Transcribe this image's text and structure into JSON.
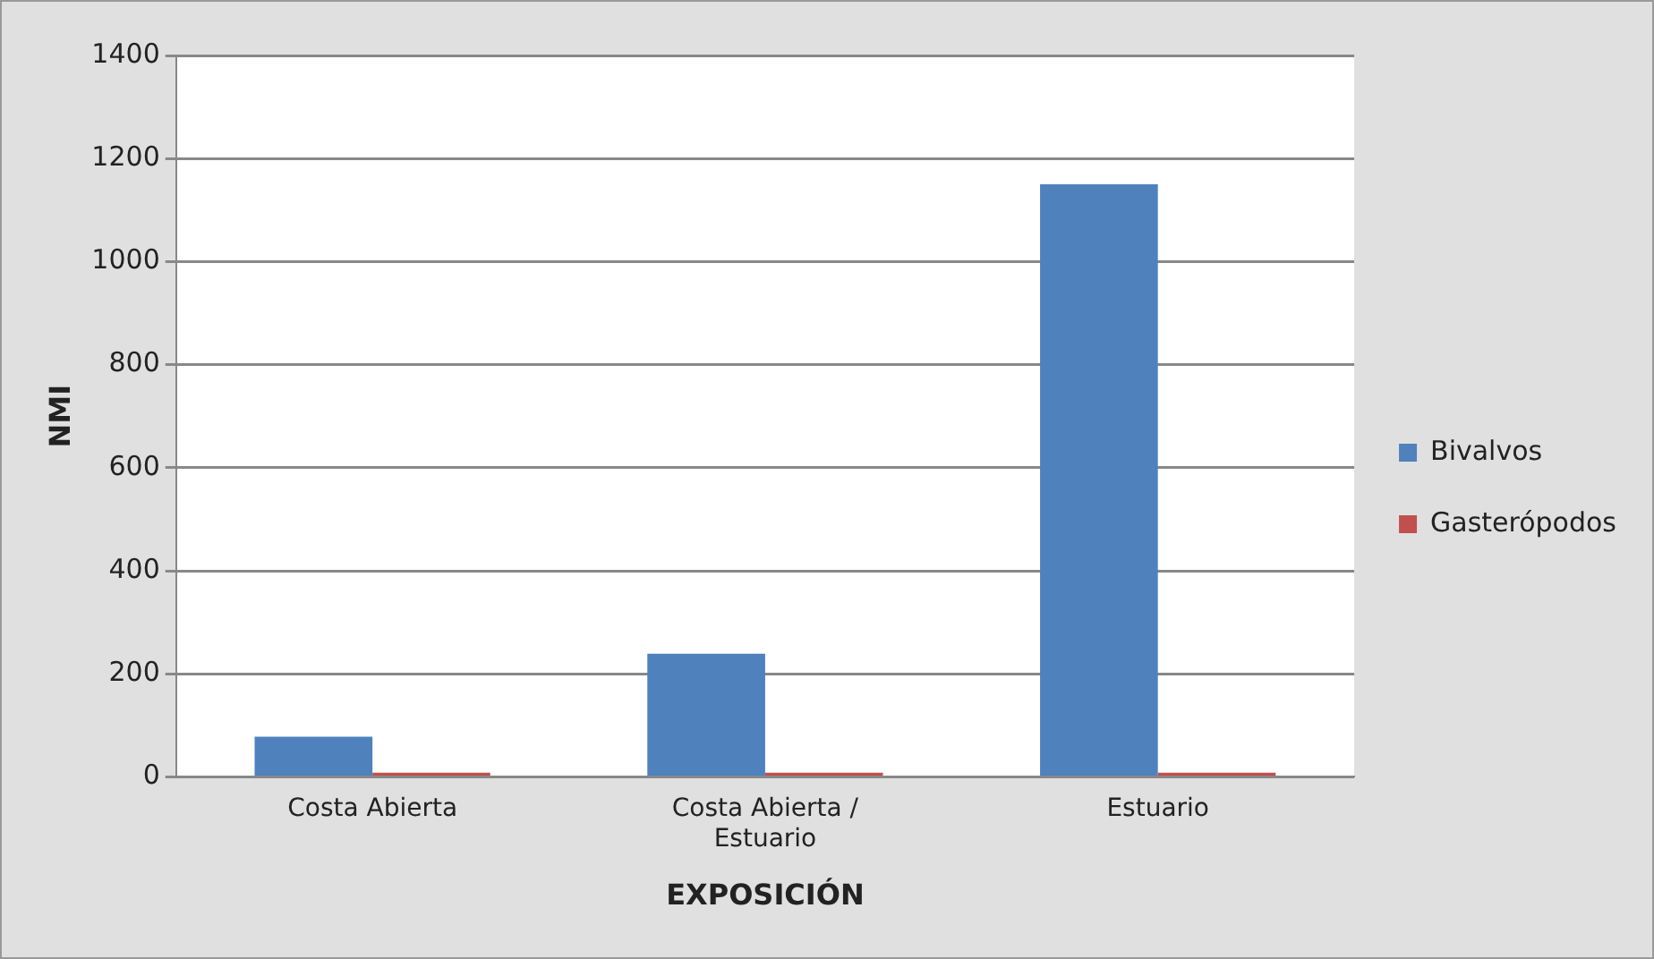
{
  "chart_data": {
    "type": "bar",
    "xlabel": "EXPOSICIÓN",
    "ylabel": "NMI",
    "categories": [
      "Costa Abierta",
      "Costa Abierta / Estuario",
      "Estuario"
    ],
    "series": [
      {
        "name": "Bivalvos",
        "color": "#4f81bd",
        "values": [
          78,
          239,
          1150
        ]
      },
      {
        "name": "Gasterópodos",
        "color": "#c0504d",
        "values": [
          8,
          8,
          8
        ]
      }
    ],
    "ylim": [
      0,
      1400
    ],
    "yticks": [
      0,
      200,
      400,
      600,
      800,
      1000,
      1200,
      1400
    ],
    "grid": "y",
    "legend": "right"
  }
}
